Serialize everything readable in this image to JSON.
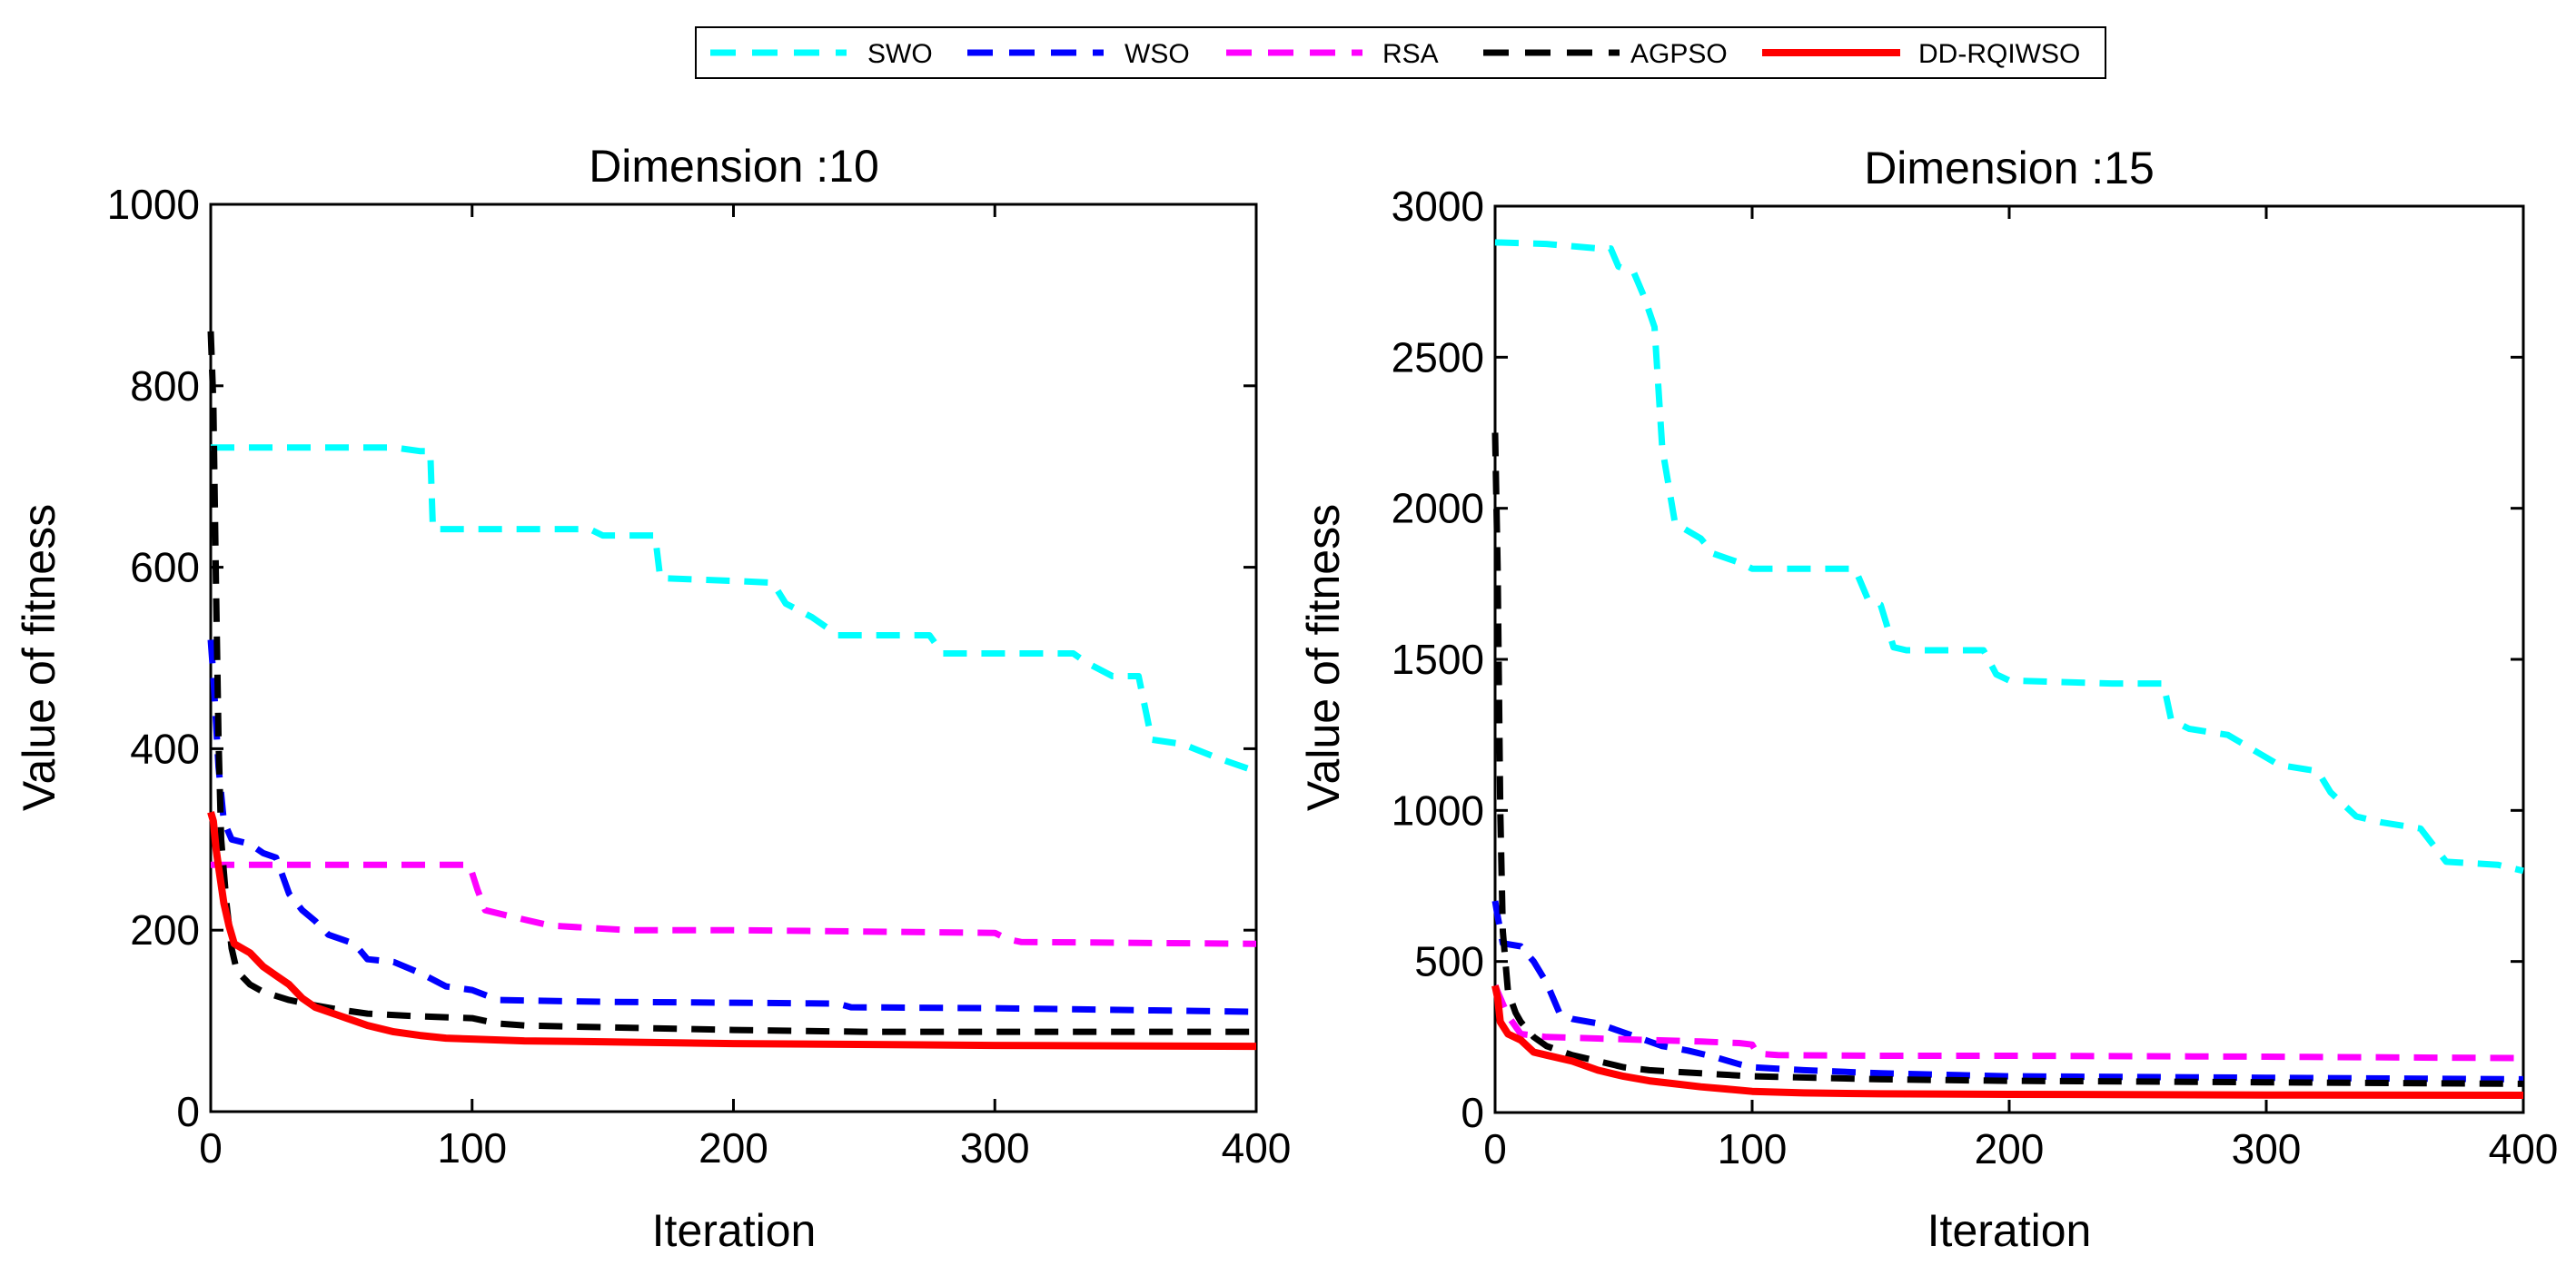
{
  "legend": {
    "items": [
      {
        "label": "SWO",
        "color": "#00ffff",
        "style": "dashed"
      },
      {
        "label": "WSO",
        "color": "#0000ff",
        "style": "dashed"
      },
      {
        "label": "RSA",
        "color": "#ff00ff",
        "style": "dashed"
      },
      {
        "label": "AGPSO",
        "color": "#000000",
        "style": "dashed"
      },
      {
        "label": "DD-RQIWSO",
        "color": "#ff0000",
        "style": "solid"
      }
    ]
  },
  "chart_data": [
    {
      "type": "line",
      "title": "Dimension :10",
      "xlabel": "Iteration",
      "ylabel": "Value of fitness",
      "xlim": [
        0,
        400
      ],
      "ylim": [
        0,
        1000
      ],
      "xticks": [
        "0",
        "100",
        "200",
        "300",
        "400"
      ],
      "yticks": [
        "0",
        "200",
        "400",
        "600",
        "800",
        "1000"
      ],
      "series": [
        {
          "name": "SWO",
          "points": [
            [
              0,
              732
            ],
            [
              70,
              732
            ],
            [
              80,
              728
            ],
            [
              84,
              728
            ],
            [
              85,
              642
            ],
            [
              145,
              642
            ],
            [
              150,
              635
            ],
            [
              170,
              635
            ],
            [
              172,
              588
            ],
            [
              200,
              585
            ],
            [
              215,
              583
            ],
            [
              220,
              560
            ],
            [
              230,
              545
            ],
            [
              235,
              535
            ],
            [
              240,
              525
            ],
            [
              275,
              525
            ],
            [
              280,
              505
            ],
            [
              330,
              505
            ],
            [
              335,
              495
            ],
            [
              345,
              480
            ],
            [
              355,
              480
            ],
            [
              360,
              410
            ],
            [
              372,
              405
            ],
            [
              385,
              390
            ],
            [
              400,
              375
            ]
          ]
        },
        {
          "name": "WSO",
          "points": [
            [
              0,
              520
            ],
            [
              1,
              480
            ],
            [
              3,
              380
            ],
            [
              5,
              320
            ],
            [
              8,
              300
            ],
            [
              15,
              295
            ],
            [
              20,
              285
            ],
            [
              25,
              280
            ],
            [
              30,
              240
            ],
            [
              35,
              222
            ],
            [
              40,
              210
            ],
            [
              45,
              195
            ],
            [
              55,
              185
            ],
            [
              60,
              168
            ],
            [
              70,
              165
            ],
            [
              80,
              153
            ],
            [
              90,
              138
            ],
            [
              100,
              134
            ],
            [
              110,
              123
            ],
            [
              150,
              121
            ],
            [
              200,
              120
            ],
            [
              240,
              119
            ],
            [
              245,
              115
            ],
            [
              300,
              114
            ],
            [
              400,
              110
            ]
          ]
        },
        {
          "name": "RSA",
          "points": [
            [
              0,
              272
            ],
            [
              20,
              272
            ],
            [
              80,
              272
            ],
            [
              99,
              272
            ],
            [
              102,
              245
            ],
            [
              105,
              222
            ],
            [
              115,
              215
            ],
            [
              130,
              205
            ],
            [
              160,
              200
            ],
            [
              200,
              200
            ],
            [
              300,
              197
            ],
            [
              305,
              190
            ],
            [
              310,
              187
            ],
            [
              400,
              185
            ]
          ]
        },
        {
          "name": "AGPSO",
          "points": [
            [
              0,
              860
            ],
            [
              1,
              780
            ],
            [
              2,
              580
            ],
            [
              3,
              410
            ],
            [
              4,
              300
            ],
            [
              6,
              230
            ],
            [
              8,
              180
            ],
            [
              10,
              155
            ],
            [
              15,
              140
            ],
            [
              20,
              132
            ],
            [
              30,
              123
            ],
            [
              40,
              117
            ],
            [
              50,
              112
            ],
            [
              60,
              108
            ],
            [
              80,
              105
            ],
            [
              100,
              103
            ],
            [
              110,
              97
            ],
            [
              120,
              95
            ],
            [
              150,
              93
            ],
            [
              200,
              90
            ],
            [
              250,
              88
            ],
            [
              300,
              88
            ],
            [
              400,
              88
            ]
          ]
        },
        {
          "name": "DD-RQIWSO",
          "points": [
            [
              0,
              330
            ],
            [
              1,
              320
            ],
            [
              2,
              290
            ],
            [
              3,
              270
            ],
            [
              5,
              230
            ],
            [
              7,
              205
            ],
            [
              9,
              185
            ],
            [
              12,
              180
            ],
            [
              15,
              175
            ],
            [
              20,
              160
            ],
            [
              25,
              150
            ],
            [
              30,
              140
            ],
            [
              35,
              125
            ],
            [
              40,
              115
            ],
            [
              50,
              105
            ],
            [
              60,
              95
            ],
            [
              70,
              88
            ],
            [
              80,
              84
            ],
            [
              90,
              81
            ],
            [
              100,
              80
            ],
            [
              120,
              78
            ],
            [
              150,
              77
            ],
            [
              200,
              75
            ],
            [
              300,
              73
            ],
            [
              400,
              72
            ]
          ]
        }
      ]
    },
    {
      "type": "line",
      "title": "Dimension :15",
      "xlabel": "Iteration",
      "ylabel": "Value of fitness",
      "xlim": [
        0,
        400
      ],
      "ylim": [
        0,
        3000
      ],
      "xticks": [
        "0",
        "100",
        "200",
        "300",
        "400"
      ],
      "yticks": [
        "0",
        "500",
        "1000",
        "1500",
        "2000",
        "2500",
        "3000"
      ],
      "series": [
        {
          "name": "SWO",
          "points": [
            [
              0,
              2880
            ],
            [
              20,
              2875
            ],
            [
              40,
              2860
            ],
            [
              45,
              2860
            ],
            [
              48,
              2800
            ],
            [
              54,
              2780
            ],
            [
              58,
              2700
            ],
            [
              62,
              2600
            ],
            [
              65,
              2200
            ],
            [
              70,
              1950
            ],
            [
              80,
              1900
            ],
            [
              85,
              1850
            ],
            [
              95,
              1820
            ],
            [
              100,
              1800
            ],
            [
              140,
              1800
            ],
            [
              145,
              1700
            ],
            [
              150,
              1680
            ],
            [
              155,
              1540
            ],
            [
              160,
              1530
            ],
            [
              190,
              1530
            ],
            [
              195,
              1450
            ],
            [
              200,
              1430
            ],
            [
              240,
              1420
            ],
            [
              260,
              1420
            ],
            [
              263,
              1300
            ],
            [
              270,
              1270
            ],
            [
              285,
              1250
            ],
            [
              295,
              1200
            ],
            [
              305,
              1150
            ],
            [
              320,
              1130
            ],
            [
              325,
              1060
            ],
            [
              335,
              980
            ],
            [
              345,
              960
            ],
            [
              360,
              940
            ],
            [
              370,
              830
            ],
            [
              390,
              820
            ],
            [
              400,
              800
            ]
          ]
        },
        {
          "name": "WSO",
          "points": [
            [
              0,
              700
            ],
            [
              1,
              650
            ],
            [
              3,
              560
            ],
            [
              10,
              550
            ],
            [
              15,
              500
            ],
            [
              20,
              430
            ],
            [
              25,
              330
            ],
            [
              30,
              310
            ],
            [
              40,
              295
            ],
            [
              45,
              280
            ],
            [
              55,
              250
            ],
            [
              65,
              220
            ],
            [
              75,
              205
            ],
            [
              85,
              185
            ],
            [
              95,
              160
            ],
            [
              100,
              150
            ],
            [
              120,
              140
            ],
            [
              150,
              130
            ],
            [
              200,
              120
            ],
            [
              300,
              115
            ],
            [
              400,
              110
            ]
          ]
        },
        {
          "name": "RSA",
          "points": [
            [
              0,
              420
            ],
            [
              5,
              320
            ],
            [
              10,
              260
            ],
            [
              20,
              250
            ],
            [
              40,
              245
            ],
            [
              60,
              240
            ],
            [
              80,
              235
            ],
            [
              95,
              230
            ],
            [
              100,
              225
            ],
            [
              102,
              195
            ],
            [
              110,
              190
            ],
            [
              150,
              188
            ],
            [
              200,
              188
            ],
            [
              300,
              185
            ],
            [
              400,
              180
            ]
          ]
        },
        {
          "name": "AGPSO",
          "points": [
            [
              0,
              2250
            ],
            [
              1,
              1800
            ],
            [
              2,
              1000
            ],
            [
              3,
              600
            ],
            [
              5,
              400
            ],
            [
              8,
              330
            ],
            [
              10,
              300
            ],
            [
              15,
              250
            ],
            [
              20,
              220
            ],
            [
              30,
              190
            ],
            [
              40,
              170
            ],
            [
              50,
              150
            ],
            [
              60,
              140
            ],
            [
              80,
              130
            ],
            [
              100,
              120
            ],
            [
              150,
              110
            ],
            [
              200,
              105
            ],
            [
              300,
              100
            ],
            [
              400,
              95
            ]
          ]
        },
        {
          "name": "DD-RQIWSO",
          "points": [
            [
              0,
              420
            ],
            [
              1,
              380
            ],
            [
              2,
              300
            ],
            [
              5,
              260
            ],
            [
              10,
              240
            ],
            [
              15,
              200
            ],
            [
              20,
              190
            ],
            [
              30,
              170
            ],
            [
              40,
              140
            ],
            [
              50,
              120
            ],
            [
              60,
              105
            ],
            [
              70,
              95
            ],
            [
              80,
              85
            ],
            [
              90,
              78
            ],
            [
              100,
              70
            ],
            [
              120,
              65
            ],
            [
              150,
              62
            ],
            [
              200,
              60
            ],
            [
              300,
              58
            ],
            [
              400,
              57
            ]
          ]
        }
      ]
    }
  ]
}
